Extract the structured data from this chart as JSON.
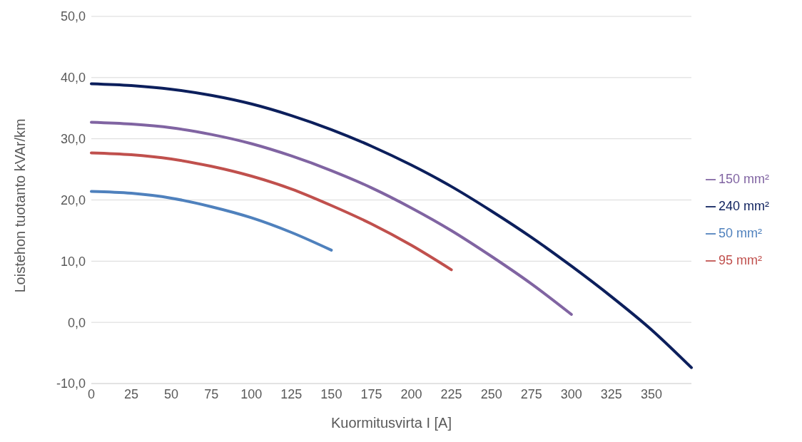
{
  "chart_data": {
    "type": "line",
    "xlabel": "Kuormitusvirta I [A]",
    "ylabel": "Loistehon tuotanto kVAr/km",
    "categories": [
      "0",
      "25",
      "50",
      "75",
      "100",
      "125",
      "150",
      "175",
      "200",
      "225",
      "250",
      "275",
      "300",
      "325",
      "350",
      null
    ],
    "series": [
      {
        "name": "50 mm²",
        "color": "#4f81bd",
        "values": [
          21.4,
          21.1,
          20.3,
          18.9,
          17.1,
          14.7,
          11.8,
          null,
          null,
          null,
          null,
          null,
          null,
          null,
          null,
          null
        ]
      },
      {
        "name": "95 mm²",
        "color": "#c0504d",
        "values": [
          27.7,
          27.4,
          26.7,
          25.5,
          23.9,
          21.8,
          19.1,
          16.1,
          12.6,
          8.6,
          null,
          null,
          null,
          null,
          null,
          null
        ]
      },
      {
        "name": "150 mm²",
        "color": "#8064a2",
        "values": [
          32.7,
          32.4,
          31.8,
          30.7,
          29.2,
          27.2,
          24.8,
          22.0,
          18.7,
          15.0,
          10.8,
          6.3,
          1.3,
          null,
          null,
          null
        ]
      },
      {
        "name": "240 mm²",
        "color": "#0c1f5c",
        "values": [
          39.0,
          38.7,
          38.1,
          37.1,
          35.7,
          33.8,
          31.5,
          28.8,
          25.7,
          22.2,
          18.2,
          13.9,
          9.2,
          4.2,
          -1.2,
          -7.4
        ]
      }
    ],
    "ylim": [
      -10,
      50
    ],
    "yticks": [
      {
        "value": -10,
        "label": "-10,0"
      },
      {
        "value": 0,
        "label": "0,0"
      },
      {
        "value": 10,
        "label": "10,0"
      },
      {
        "value": 20,
        "label": "20,0"
      },
      {
        "value": 30,
        "label": "30,0"
      },
      {
        "value": 40,
        "label": "40,0"
      },
      {
        "value": 50,
        "label": "50,0"
      }
    ],
    "grid": "y",
    "legend": "right",
    "marker": "none",
    "line_style": "solid"
  }
}
